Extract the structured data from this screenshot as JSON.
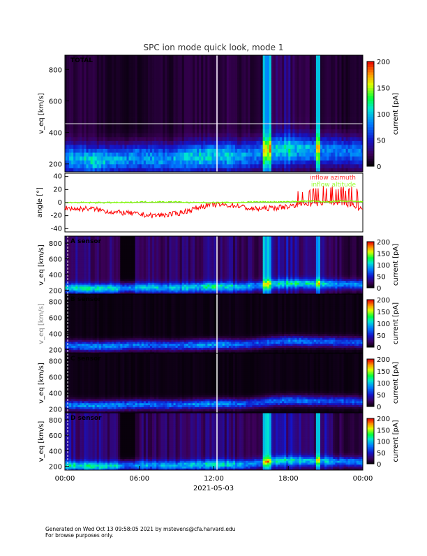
{
  "chart_data": {
    "type": "heatmap",
    "title": "SPC ion mode quick look, mode 1",
    "xlabel": "2021-05-03",
    "x_ticks": [
      "00:00",
      "06:00",
      "12:00",
      "18:00",
      "00:00"
    ],
    "xlim_hours": [
      0,
      24
    ],
    "panels": [
      {
        "label": "TOTAL",
        "ylabel": "v_eq [km/s]",
        "y_ticks": [
          200,
          400,
          600,
          800
        ],
        "ylim": [
          150,
          890
        ],
        "colorbar_label": "current [pA]",
        "colorbar_ticks": [
          0,
          50,
          100,
          150,
          200
        ],
        "clim": [
          0,
          200
        ],
        "core_speed_kms": [
          240,
          230,
          220,
          225,
          230,
          235,
          240,
          235,
          230,
          230,
          240,
          245,
          250,
          250,
          245,
          255,
          270,
          285,
          290,
          290,
          285,
          280,
          280,
          275,
          270
        ],
        "core_current_pA": [
          70,
          80,
          90,
          90,
          85,
          80,
          80,
          75,
          75,
          80,
          85,
          90,
          90,
          85,
          75,
          70,
          75,
          80,
          85,
          80,
          75,
          70,
          70,
          70,
          70
        ],
        "background_pA": [
          20,
          15,
          15,
          12,
          10,
          5,
          10,
          12,
          12,
          12,
          15,
          15,
          18,
          20,
          15,
          15,
          10,
          25,
          30,
          20,
          15,
          20,
          12,
          10,
          10
        ]
      },
      {
        "label": "",
        "ylabel": "angle [°]",
        "y_ticks": [
          -40,
          -20,
          0,
          20,
          40
        ],
        "ylim": [
          -45,
          45
        ],
        "type": "line",
        "series": [
          {
            "name": "inflow azimuth",
            "color": "#ff0000",
            "values": [
              -8,
              -10,
              -9,
              -12,
              -15,
              -16,
              -18,
              -20,
              -19,
              -17,
              -12,
              -6,
              -3,
              -4,
              -5,
              -10,
              -9,
              -8,
              -6,
              -2,
              -3,
              0,
              -2,
              -4,
              -10
            ]
          },
          {
            "name": "inflow altitude",
            "color": "#7fff00",
            "values": [
              0,
              0,
              0,
              0,
              0,
              0,
              1,
              1,
              1,
              1,
              0,
              0,
              0,
              0,
              0,
              1,
              1,
              1,
              1,
              2,
              2,
              1,
              2,
              2,
              1
            ]
          }
        ]
      },
      {
        "label": "A sensor",
        "ylabel": "v_eq [km/s]",
        "y_ticks": [
          200,
          400,
          600,
          800
        ],
        "ylim": [
          150,
          890
        ],
        "colorbar_label": "current [pA]",
        "colorbar_ticks": [
          0,
          50,
          100,
          150,
          200
        ],
        "clim": [
          0,
          200
        ],
        "core_speed_kms": [
          230,
          225,
          220,
          220,
          225,
          230,
          235,
          235,
          230,
          230,
          235,
          240,
          245,
          245,
          240,
          250,
          265,
          280,
          285,
          285,
          280,
          280,
          275,
          275,
          270
        ],
        "core_current_pA": [
          75,
          80,
          90,
          90,
          85,
          80,
          80,
          75,
          75,
          75,
          80,
          85,
          90,
          85,
          75,
          70,
          70,
          75,
          80,
          80,
          75,
          70,
          70,
          70,
          70
        ],
        "background_pA": [
          35,
          35,
          30,
          30,
          25,
          10,
          25,
          25,
          25,
          25,
          30,
          30,
          30,
          30,
          25,
          25,
          20,
          35,
          40,
          30,
          25,
          35,
          20,
          15,
          15
        ]
      },
      {
        "label": "B sensor",
        "ylabel": "v_eq [km/s]",
        "y_ticks": [
          200,
          400,
          600,
          800
        ],
        "ylim": [
          150,
          890
        ],
        "colorbar_label": "current [pA]",
        "colorbar_ticks": [
          0,
          50,
          100,
          150,
          200
        ],
        "clim": [
          0,
          200
        ],
        "core_speed_kms": [
          250,
          245,
          240,
          240,
          245,
          250,
          255,
          255,
          250,
          250,
          255,
          260,
          265,
          265,
          260,
          270,
          285,
          300,
          305,
          305,
          300,
          300,
          295,
          295,
          290
        ],
        "core_current_pA": [
          70,
          75,
          80,
          80,
          80,
          75,
          75,
          70,
          70,
          70,
          75,
          80,
          85,
          80,
          70,
          65,
          65,
          70,
          75,
          75,
          70,
          65,
          65,
          65,
          65
        ],
        "background_pA": [
          5,
          5,
          5,
          5,
          5,
          5,
          5,
          5,
          5,
          5,
          5,
          5,
          5,
          5,
          5,
          5,
          5,
          5,
          5,
          5,
          5,
          5,
          5,
          5,
          5
        ]
      },
      {
        "label": "C sensor",
        "ylabel": "v_eq [km/s]",
        "y_ticks": [
          200,
          400,
          600,
          800
        ],
        "ylim": [
          150,
          890
        ],
        "colorbar_label": "current [pA]",
        "colorbar_ticks": [
          0,
          50,
          100,
          150,
          200
        ],
        "clim": [
          0,
          200
        ],
        "core_speed_kms": [
          250,
          245,
          240,
          240,
          245,
          250,
          255,
          255,
          250,
          250,
          255,
          260,
          265,
          265,
          260,
          270,
          285,
          300,
          305,
          305,
          300,
          300,
          295,
          295,
          290
        ],
        "core_current_pA": [
          70,
          75,
          80,
          80,
          80,
          75,
          75,
          70,
          70,
          70,
          75,
          80,
          85,
          80,
          70,
          65,
          65,
          70,
          75,
          75,
          70,
          65,
          65,
          65,
          65
        ],
        "background_pA": [
          5,
          5,
          5,
          5,
          5,
          5,
          5,
          5,
          5,
          5,
          5,
          5,
          5,
          5,
          5,
          5,
          5,
          5,
          5,
          5,
          5,
          5,
          5,
          5,
          5
        ]
      },
      {
        "label": "D sensor",
        "ylabel": "v_eq [km/s]",
        "y_ticks": [
          200,
          400,
          600,
          800
        ],
        "ylim": [
          150,
          890
        ],
        "colorbar_label": "current [pA]",
        "colorbar_ticks": [
          0,
          50,
          100,
          150,
          200
        ],
        "clim": [
          0,
          200
        ],
        "core_speed_kms": [
          210,
          205,
          200,
          200,
          205,
          210,
          215,
          215,
          210,
          210,
          215,
          220,
          225,
          225,
          220,
          230,
          250,
          265,
          270,
          270,
          265,
          265,
          260,
          260,
          255
        ],
        "core_current_pA": [
          75,
          80,
          85,
          85,
          80,
          75,
          75,
          70,
          70,
          70,
          75,
          80,
          85,
          80,
          70,
          65,
          65,
          70,
          75,
          75,
          70,
          70,
          70,
          70,
          70
        ],
        "background_pA": [
          35,
          35,
          30,
          30,
          25,
          10,
          25,
          25,
          25,
          25,
          30,
          30,
          30,
          30,
          25,
          25,
          20,
          35,
          40,
          30,
          25,
          35,
          20,
          15,
          15
        ]
      }
    ]
  },
  "footer": {
    "line1": "Generated on Wed Oct 13 09:58:05 2021 by mstevens@cfa.harvard.edu",
    "line2": "For browse purposes only."
  }
}
